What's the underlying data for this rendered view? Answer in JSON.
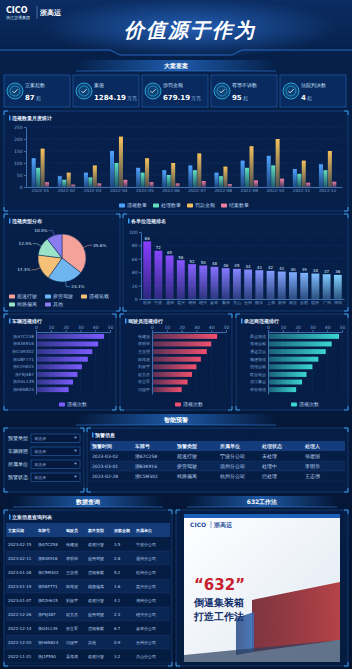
{
  "header": {
    "logo": "CICO",
    "company": "浙江交通集团",
    "brand": "浙高运",
    "slogan": "价值源于作为"
  },
  "sections": [
    "大案要案",
    "智能预警",
    "数据查询",
    "632工作法"
  ],
  "kpis": [
    {
      "label": "立案起数",
      "value": 87,
      "unit": "起"
    },
    {
      "label": "案值",
      "value": 1284.19,
      "unit": "万元"
    },
    {
      "label": "涉罚金额",
      "value": 679.19,
      "unit": "万元"
    },
    {
      "label": "有罪不诉数",
      "value": 95,
      "unit": "起"
    },
    {
      "label": "法院判决数",
      "value": 4,
      "unit": "起"
    }
  ],
  "chart_data": [
    {
      "type": "bar",
      "title": "违规数量月度统计",
      "categories": [
        "2022-01",
        "2022-02",
        "2022-03",
        "2022-04",
        "2022-05",
        "2022-06",
        "2022-07",
        "2022-08",
        "2022-09",
        "2022-10",
        "2022-11",
        "2022-12"
      ],
      "series": [
        {
          "name": "违规数量",
          "color": "#4fa3ff",
          "values": [
            120,
            45,
            60,
            150,
            80,
            70,
            90,
            60,
            110,
            130,
            75,
            95
          ]
        },
        {
          "name": "处理数量",
          "color": "#5fe0c0",
          "values": [
            80,
            30,
            40,
            100,
            60,
            50,
            70,
            45,
            80,
            90,
            55,
            70
          ]
        },
        {
          "name": "罚款金额",
          "color": "#f5c15c",
          "values": [
            160,
            60,
            90,
            210,
            120,
            100,
            140,
            85,
            170,
            200,
            110,
            150
          ]
        },
        {
          "name": "结案数量",
          "color": "#f07fa0",
          "values": [
            20,
            10,
            15,
            30,
            20,
            15,
            25,
            12,
            28,
            35,
            18,
            22
          ]
        }
      ],
      "ylim": [
        0,
        250
      ],
      "yticks": [
        0,
        50,
        100,
        150,
        200,
        250
      ],
      "grid": true,
      "legend": "bottom"
    },
    {
      "type": "pie",
      "title": "违规类型分布",
      "categories": [
        "超速行驶",
        "疲劳驾驶",
        "违规装载",
        "线路偏离",
        "其他"
      ],
      "values": [
        35.6,
        24.1,
        17.3,
        12.5,
        10.5
      ],
      "value_labels": [
        "35.6%",
        "24.1%",
        "17.3%",
        "12.5%",
        "10.5%"
      ],
      "colors": [
        "#f4a29a",
        "#6fb6f0",
        "#f6c177",
        "#9be3c8",
        "#8a7cf0"
      ],
      "data_labels": true,
      "legend": "bottom"
    },
    {
      "type": "bar",
      "title": "各单位违规排名",
      "categories": [
        "杭州",
        "宁波",
        "温州",
        "嘉兴",
        "湖州",
        "绍兴",
        "金华",
        "衢州",
        "舟山",
        "台州",
        "丽水",
        "上海",
        "苏州",
        "南京",
        "合肥",
        "福州",
        "广州",
        "深圳"
      ],
      "values": [
        86,
        72,
        65,
        58,
        52,
        50,
        48,
        46,
        45,
        44,
        43,
        42,
        41,
        40,
        39,
        38,
        37,
        36
      ],
      "colors": [
        "#8a3cff",
        "#8945ff",
        "#894dff",
        "#8856ff",
        "#875fff",
        "#8768ff",
        "#8670ff",
        "#8579ff",
        "#8582ff",
        "#848aff",
        "#8393ff",
        "#839cff",
        "#82a4ff",
        "#81adff",
        "#81b6ff",
        "#80bfff",
        "#7fc7ff",
        "#7fd0ff"
      ],
      "ylim": [
        0,
        100
      ],
      "yticks": [
        0,
        20,
        40,
        60,
        80,
        100
      ],
      "grid": true,
      "data_labels": true
    },
    {
      "type": "bar",
      "orientation": "horizontal",
      "title": "车辆违规排行",
      "categories": [
        "浙A7C258",
        "浙B3K916",
        "浙C5M302",
        "浙D8F771",
        "浙E2H615",
        "浙F9J487",
        "浙G4L139",
        "浙H6N824"
      ],
      "series": [
        {
          "name": "违规次数",
          "color": "#7b5cff",
          "values": [
            46,
            42,
            38,
            35,
            31,
            28,
            25,
            22
          ]
        }
      ],
      "xlim": [
        0,
        50
      ],
      "xticks": [
        0,
        10,
        20,
        30,
        40,
        50
      ],
      "grid": true,
      "legend": "bottom"
    },
    {
      "type": "bar",
      "orientation": "horizontal",
      "title": "驾驶员违规排行",
      "categories": [
        "张建国",
        "李明华",
        "王志强",
        "陈海波",
        "刘振宇",
        "赵文杰",
        "孙立军",
        "周国平"
      ],
      "series": [
        {
          "name": "违规次数",
          "color": "#f0506e",
          "values": [
            44,
            40,
            37,
            33,
            30,
            27,
            24,
            20
          ]
        }
      ],
      "xlim": [
        0,
        50
      ],
      "xticks": [
        0,
        10,
        20,
        30,
        40,
        50
      ],
      "grid": true,
      "legend": "bottom"
    },
    {
      "type": "bar",
      "orientation": "horizontal",
      "title": "承运商违规排行",
      "categories": [
        "甬运物流",
        "海港运输",
        "通达货运",
        "顺捷物流",
        "恒信运输",
        "联合储运",
        "远洋集运",
        "华东物流"
      ],
      "series": [
        {
          "name": "违规次数",
          "color": "#3ad6d0",
          "values": [
            48,
            43,
            39,
            34,
            30,
            26,
            23,
            19
          ]
        }
      ],
      "xlim": [
        0,
        50
      ],
      "xticks": [
        0,
        10,
        20,
        30,
        40,
        50
      ],
      "grid": true,
      "legend": "bottom"
    }
  ],
  "warning": {
    "filters": [
      {
        "label": "预警类型",
        "placeholder": "请选择"
      },
      {
        "label": "车辆牌照",
        "placeholder": "请选择"
      },
      {
        "label": "所属单位",
        "placeholder": "请选择"
      },
      {
        "label": "预警状态",
        "placeholder": "请选择"
      }
    ],
    "title": "预警信息",
    "columns": [
      "预警时间",
      "车牌号",
      "预警类型",
      "所属单位",
      "处理状态",
      "处理人"
    ],
    "rows": [
      [
        "2023-03-02",
        "浙A7C258",
        "超速行驶",
        "宁波分公司",
        "未处理",
        "张建国"
      ],
      [
        "2023-03-01",
        "浙B3K916",
        "疲劳驾驶",
        "温州分公司",
        "处理中",
        "李明华"
      ],
      [
        "2023-02-28",
        "浙C5M302",
        "线路偏离",
        "杭州分公司",
        "已处理",
        "王志强"
      ]
    ]
  },
  "query": {
    "title": "立案信息查询列表",
    "columns": [
      "立案日期",
      "车牌号",
      "驾驶员",
      "案件类型",
      "涉案金额",
      "所属单位"
    ],
    "rows": [
      [
        "2023-02-15",
        "浙A7C258",
        "张建国",
        "超速行驶",
        3.5,
        "宁波分公司"
      ],
      [
        "2023-02-11",
        "浙B3K916",
        "李明华",
        "疲劳驾驶",
        2.8,
        "温州分公司"
      ],
      [
        "2023-01-28",
        "浙C5M302",
        "王志强",
        "违规装载",
        5.2,
        "杭州分公司"
      ],
      [
        "2023-01-19",
        "浙D8F771",
        "陈海波",
        "线路偏离",
        1.6,
        "嘉兴分公司"
      ],
      [
        "2023-01-07",
        "浙E2H615",
        "刘振宇",
        "超速行驶",
        4.1,
        "湖州分公司"
      ],
      [
        "2022-12-26",
        "浙F9J487",
        "赵文杰",
        "疲劳驾驶",
        2.3,
        "绍兴分公司"
      ],
      [
        "2022-12-14",
        "浙G4L139",
        "孙立军",
        "违规装载",
        6.7,
        "金华分公司"
      ],
      [
        "2022-12-03",
        "浙H6N824",
        "周国平",
        "其他",
        0.9,
        "台州分公司"
      ],
      [
        "2022-11-21",
        "浙J1P550",
        "吴海涛",
        "超速行驶",
        3.2,
        "舟山分公司"
      ]
    ]
  },
  "method": {
    "logo": "CICO",
    "brand": "浙高运",
    "lines": [
      "“632”",
      "倒逼集装箱",
      "打造工作法"
    ]
  }
}
